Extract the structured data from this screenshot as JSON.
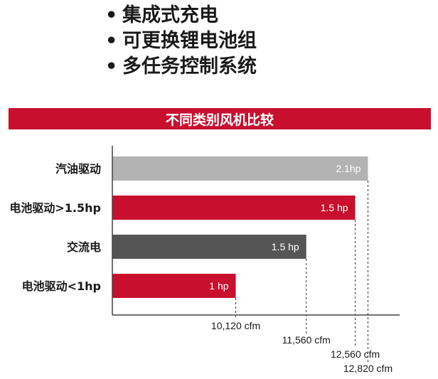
{
  "bullets": [
    "集成式充电",
    "可更换锂电池组",
    "多任务控制系统"
  ],
  "colors": {
    "brand_red": "#c8102e",
    "gray": "#b3b3b3",
    "dark_gray": "#555555",
    "axis": "#444444",
    "bar_text": "#ffffff"
  },
  "chart_data": {
    "type": "bar",
    "orientation": "horizontal",
    "title": "不同类别风机比较",
    "categories": [
      "汽油驱动",
      "电池驱动>1.5hp",
      "交流电",
      "电池驱动<1hp"
    ],
    "values": [
      12820,
      12560,
      11560,
      10120
    ],
    "bar_labels": [
      "2.1hp",
      "1.5 hp",
      "1.5 hp",
      "1 hp"
    ],
    "value_labels": [
      "12,820 cfm",
      "12,560 cfm",
      "11,560 cfm",
      "10,120 cfm"
    ],
    "bar_colors": [
      "#b3b3b3",
      "#c8102e",
      "#555555",
      "#c8102e"
    ],
    "value_axis_range": [
      7600,
      12900
    ],
    "grid": false,
    "legend": "none"
  }
}
